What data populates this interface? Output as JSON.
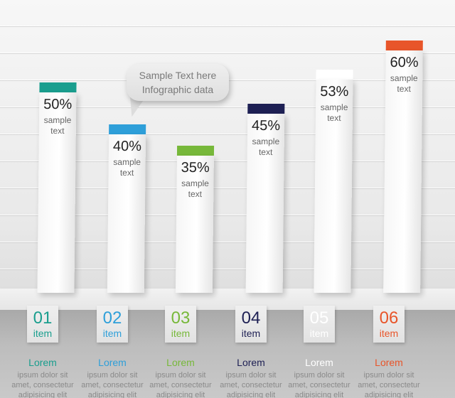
{
  "callout": {
    "line1": "Sample Text here",
    "line2": "Infographic data"
  },
  "chart_data": {
    "type": "bar",
    "categories": [
      "01",
      "02",
      "03",
      "04",
      "05",
      "06"
    ],
    "values": [
      50,
      40,
      35,
      45,
      53,
      60
    ],
    "value_labels": [
      "50%",
      "40%",
      "35%",
      "45%",
      "53%",
      "60%"
    ],
    "bar_caption": [
      "sample",
      "text"
    ],
    "ylim": [
      0,
      100
    ],
    "grid": true,
    "colors": [
      "#1a9e8e",
      "#2e9fd9",
      "#77b83a",
      "#1e2054",
      "#ffffff",
      "#e8552a"
    ],
    "items": [
      {
        "num": "01",
        "item": "item",
        "lorem": "Lorem",
        "desc": [
          "ipsum dolor sit",
          "amet, consectetur",
          "adipisicing elit"
        ]
      },
      {
        "num": "02",
        "item": "item",
        "lorem": "Lorem",
        "desc": [
          "ipsum dolor sit",
          "amet, consectetur",
          "adipisicing elit"
        ]
      },
      {
        "num": "03",
        "item": "item",
        "lorem": "Lorem",
        "desc": [
          "ipsum dolor sit",
          "amet, consectetur",
          "adipisicing elit"
        ]
      },
      {
        "num": "04",
        "item": "item",
        "lorem": "Lorem",
        "desc": [
          "ipsum dolor sit",
          "amet, consectetur",
          "adipisicing elit"
        ]
      },
      {
        "num": "05",
        "item": "item",
        "lorem": "Lorem",
        "desc": [
          "ipsum dolor sit",
          "amet, consectetur",
          "adipisicing elit"
        ]
      },
      {
        "num": "06",
        "item": "item",
        "lorem": "Lorem",
        "desc": [
          "ipsum dolor sit",
          "amet, consectetur",
          "adipisicing elit"
        ]
      }
    ]
  }
}
